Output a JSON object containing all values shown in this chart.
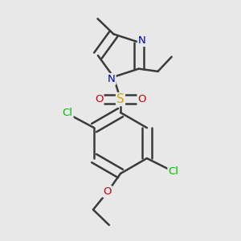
{
  "background_color": "#e8e8e8",
  "bond_color": "#3a3a3a",
  "bond_width": 1.8,
  "atom_colors": {
    "C": "#3a3a3a",
    "N": "#0000cc",
    "O": "#cc0000",
    "S": "#ccaa00",
    "Cl": "#00bb00"
  },
  "font_size": 9.5,
  "fig_width": 3.0,
  "fig_height": 3.0,
  "dpi": 100,
  "xlim": [
    0.1,
    0.9
  ],
  "ylim": [
    0.05,
    0.95
  ]
}
